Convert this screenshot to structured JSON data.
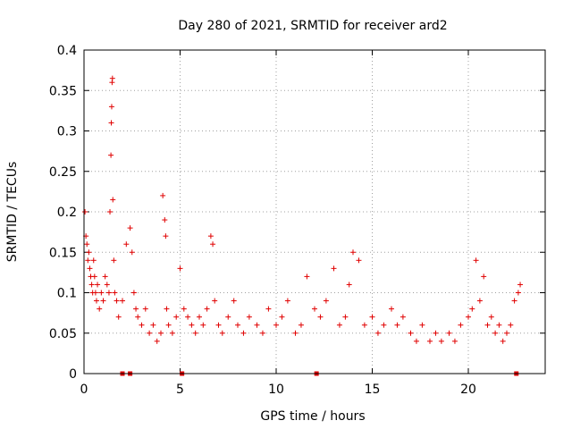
{
  "chart_data": {
    "type": "scatter",
    "title": "Day 280 of 2021, SRMTID for receiver ard2",
    "xlabel": "GPS time / hours",
    "ylabel": "SRMTID / TECUs",
    "xlim": [
      0,
      24
    ],
    "ylim": [
      0,
      0.4
    ],
    "xticks": [
      0,
      5,
      10,
      15,
      20
    ],
    "xtick_labels": [
      "0",
      "5",
      "10",
      "15",
      "20"
    ],
    "yticks": [
      0,
      0.05,
      0.1,
      0.15,
      0.2,
      0.25,
      0.3,
      0.35,
      0.4
    ],
    "ytick_labels": [
      "0",
      "0.05",
      "0.1",
      "0.15",
      "0.2",
      "0.25",
      "0.3",
      "0.35",
      "0.4"
    ],
    "grid": true,
    "marker": "plus",
    "color": "#e00000",
    "series": [
      {
        "name": "SRMTID",
        "approximate": true,
        "x": [
          0.05,
          0.1,
          0.15,
          0.2,
          0.25,
          0.3,
          0.35,
          0.4,
          0.45,
          0.5,
          0.55,
          0.6,
          0.65,
          0.7,
          0.8,
          0.9,
          1.0,
          1.1,
          1.2,
          1.3,
          1.35,
          1.4,
          1.42,
          1.44,
          1.46,
          1.48,
          1.5,
          1.55,
          1.6,
          1.7,
          1.8,
          2.0,
          2.2,
          2.4,
          2.5,
          2.6,
          2.7,
          2.8,
          3.0,
          3.2,
          3.4,
          3.6,
          3.8,
          4.0,
          4.1,
          4.2,
          4.25,
          4.3,
          4.4,
          4.6,
          4.8,
          5.0,
          5.2,
          5.4,
          5.6,
          5.8,
          6.0,
          6.2,
          6.4,
          6.6,
          6.7,
          6.8,
          7.0,
          7.2,
          7.5,
          7.8,
          8.0,
          8.3,
          8.6,
          9.0,
          9.3,
          9.6,
          10.0,
          10.3,
          10.6,
          11.0,
          11.3,
          11.6,
          12.0,
          12.3,
          12.6,
          13.0,
          13.3,
          13.6,
          13.8,
          14.0,
          14.3,
          14.6,
          15.0,
          15.3,
          15.6,
          16.0,
          16.3,
          16.6,
          17.0,
          17.3,
          17.6,
          18.0,
          18.3,
          18.6,
          19.0,
          19.3,
          19.6,
          20.0,
          20.2,
          20.4,
          20.6,
          20.8,
          21.0,
          21.2,
          21.4,
          21.6,
          21.8,
          22.0,
          22.2,
          22.4,
          22.6,
          22.7
        ],
        "y": [
          0.2,
          0.17,
          0.16,
          0.14,
          0.15,
          0.13,
          0.12,
          0.11,
          0.1,
          0.14,
          0.12,
          0.1,
          0.09,
          0.11,
          0.08,
          0.1,
          0.09,
          0.12,
          0.11,
          0.1,
          0.2,
          0.27,
          0.31,
          0.33,
          0.36,
          0.365,
          0.215,
          0.14,
          0.1,
          0.09,
          0.07,
          0.09,
          0.16,
          0.18,
          0.15,
          0.1,
          0.08,
          0.07,
          0.06,
          0.08,
          0.05,
          0.06,
          0.04,
          0.05,
          0.22,
          0.19,
          0.17,
          0.08,
          0.06,
          0.05,
          0.07,
          0.13,
          0.08,
          0.07,
          0.06,
          0.05,
          0.07,
          0.06,
          0.08,
          0.17,
          0.16,
          0.09,
          0.06,
          0.05,
          0.07,
          0.09,
          0.06,
          0.05,
          0.07,
          0.06,
          0.05,
          0.08,
          0.06,
          0.07,
          0.09,
          0.05,
          0.06,
          0.12,
          0.08,
          0.07,
          0.09,
          0.13,
          0.06,
          0.07,
          0.11,
          0.15,
          0.14,
          0.06,
          0.07,
          0.05,
          0.06,
          0.08,
          0.06,
          0.07,
          0.05,
          0.04,
          0.06,
          0.04,
          0.05,
          0.04,
          0.05,
          0.04,
          0.06,
          0.07,
          0.08,
          0.14,
          0.09,
          0.12,
          0.06,
          0.07,
          0.05,
          0.06,
          0.04,
          0.05,
          0.06,
          0.09,
          0.1,
          0.11
        ]
      }
    ],
    "zero_markers_x": [
      2.0,
      2.4,
      5.1,
      12.1,
      22.5
    ]
  }
}
